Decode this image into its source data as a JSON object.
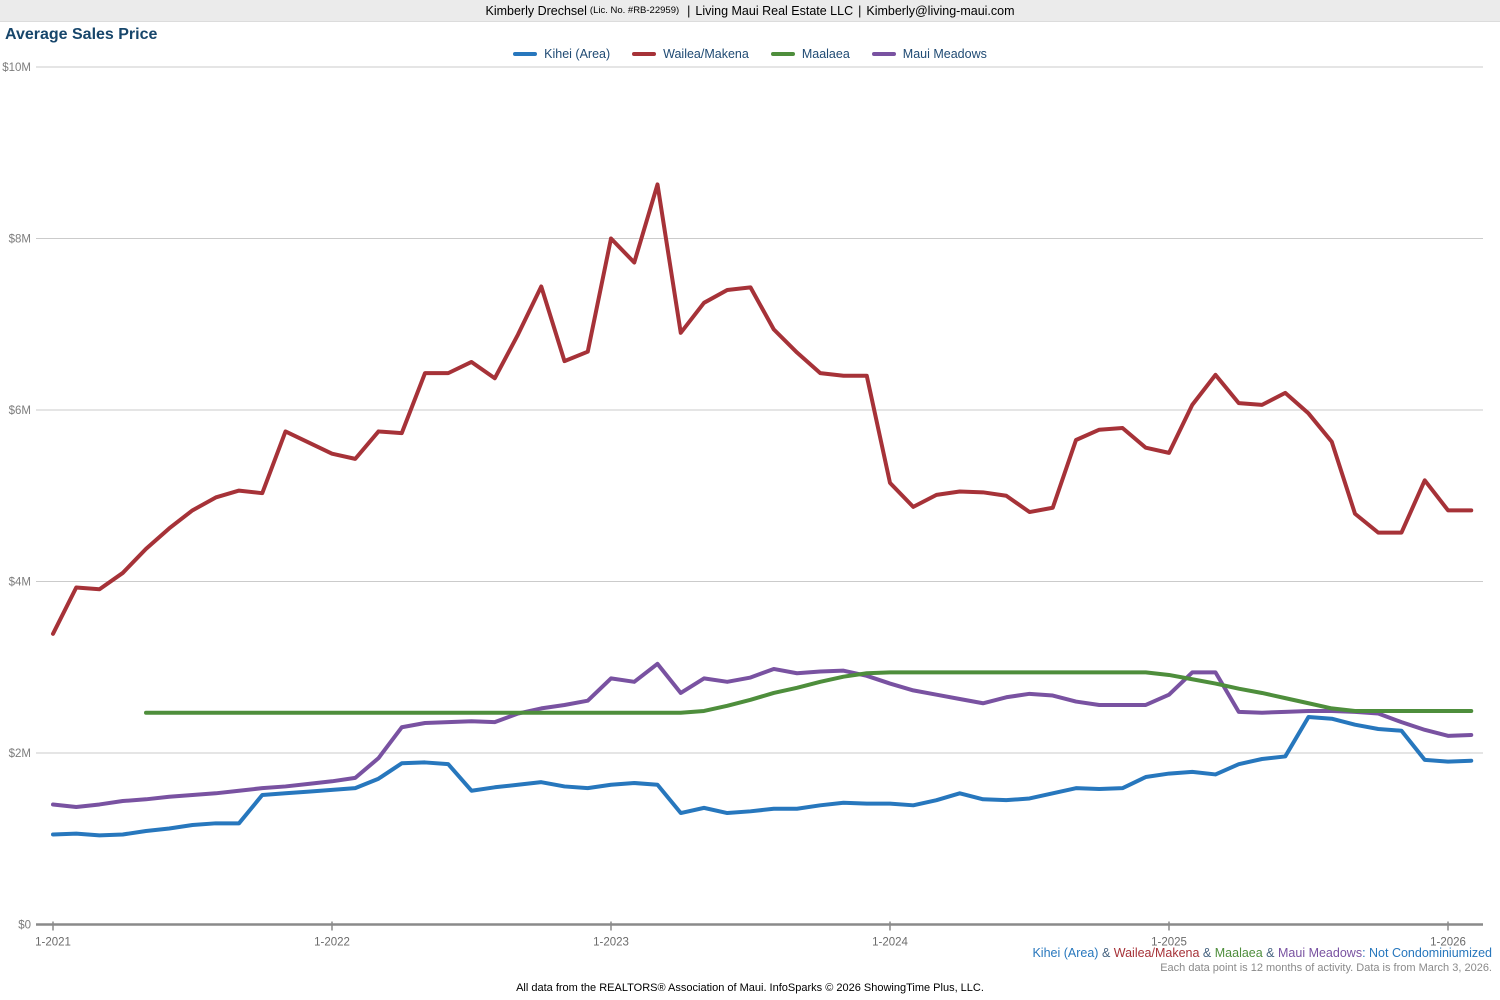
{
  "header": {
    "agent": "Kimberly Drechsel",
    "license": "(Lic. No. #RB-22959)",
    "separator": "|",
    "company": "Living Maui Real Estate LLC",
    "email": "Kimberly@living-maui.com"
  },
  "title": "Average Sales Price",
  "chart_data": {
    "type": "line",
    "title": "Average Sales Price",
    "x_unit": "month",
    "x_start": "2021-01",
    "x_end": "2026-02",
    "y_unit": "USD millions",
    "ylim": [
      0,
      10
    ],
    "grid": "horizontal",
    "legend_position": "top-center",
    "y_ticks": [
      {
        "value": 0,
        "label": "$0"
      },
      {
        "value": 2,
        "label": "$2M"
      },
      {
        "value": 4,
        "label": "$4M"
      },
      {
        "value": 6,
        "label": "$6M"
      },
      {
        "value": 8,
        "label": "$8M"
      },
      {
        "value": 10,
        "label": "$10M"
      }
    ],
    "x_ticks": [
      {
        "month_index": 0,
        "label": "1-2021"
      },
      {
        "month_index": 12,
        "label": "1-2022"
      },
      {
        "month_index": 24,
        "label": "1-2023"
      },
      {
        "month_index": 36,
        "label": "1-2024"
      },
      {
        "month_index": 48,
        "label": "1-2025"
      },
      {
        "month_index": 60,
        "label": "1-2026"
      }
    ],
    "series": [
      {
        "name": "Kihei (Area)",
        "color": "#2777BD",
        "start_month_index": 0,
        "values": [
          1.05,
          1.06,
          1.04,
          1.05,
          1.09,
          1.12,
          1.16,
          1.18,
          1.18,
          1.51,
          1.53,
          1.55,
          1.57,
          1.59,
          1.7,
          1.88,
          1.89,
          1.87,
          1.56,
          1.6,
          1.63,
          1.66,
          1.61,
          1.59,
          1.63,
          1.65,
          1.63,
          1.3,
          1.36,
          1.3,
          1.32,
          1.35,
          1.35,
          1.39,
          1.42,
          1.41,
          1.41,
          1.39,
          1.45,
          1.53,
          1.46,
          1.45,
          1.47,
          1.53,
          1.59,
          1.58,
          1.59,
          1.72,
          1.76,
          1.78,
          1.75,
          1.87,
          1.93,
          1.96,
          2.42,
          2.4,
          2.33,
          2.28,
          2.26,
          1.92,
          1.9,
          1.91
        ]
      },
      {
        "name": "Wailea/Makena",
        "color": "#A63238",
        "start_month_index": 0,
        "values": [
          3.39,
          3.93,
          3.91,
          4.1,
          4.38,
          4.62,
          4.83,
          4.98,
          5.06,
          5.03,
          5.75,
          5.62,
          5.49,
          5.43,
          5.75,
          5.73,
          6.43,
          6.43,
          6.56,
          6.37,
          6.88,
          7.44,
          6.57,
          6.68,
          8.0,
          7.72,
          8.63,
          6.9,
          7.25,
          7.4,
          7.43,
          6.94,
          6.67,
          6.43,
          6.4,
          6.4,
          5.15,
          4.87,
          5.01,
          5.05,
          5.04,
          5.0,
          4.81,
          4.86,
          5.65,
          5.77,
          5.79,
          5.56,
          5.5,
          6.06,
          6.41,
          6.08,
          6.06,
          6.2,
          5.96,
          5.63,
          4.79,
          4.57,
          4.57,
          5.18,
          4.83,
          4.83
        ]
      },
      {
        "name": "Maalaea",
        "color": "#4E8E3C",
        "start_month_index": 4,
        "values": [
          2.47,
          2.47,
          2.47,
          2.47,
          2.47,
          2.47,
          2.47,
          2.47,
          2.47,
          2.47,
          2.47,
          2.47,
          2.47,
          2.47,
          2.47,
          2.47,
          2.47,
          2.47,
          2.47,
          2.47,
          2.47,
          2.47,
          2.47,
          2.47,
          2.49,
          2.55,
          2.62,
          2.7,
          2.76,
          2.83,
          2.89,
          2.93,
          2.94,
          2.94,
          2.94,
          2.94,
          2.94,
          2.94,
          2.94,
          2.94,
          2.94,
          2.94,
          2.94,
          2.94,
          2.91,
          2.86,
          2.81,
          2.75,
          2.7,
          2.64,
          2.58,
          2.52,
          2.49,
          2.49,
          2.49,
          2.49,
          2.49,
          2.49
        ]
      },
      {
        "name": "Maui Meadows",
        "color": "#7952A1",
        "start_month_index": 0,
        "values": [
          1.4,
          1.37,
          1.4,
          1.44,
          1.46,
          1.49,
          1.51,
          1.53,
          1.56,
          1.59,
          1.61,
          1.64,
          1.67,
          1.71,
          1.94,
          2.3,
          2.35,
          2.36,
          2.37,
          2.36,
          2.46,
          2.52,
          2.56,
          2.61,
          2.87,
          2.83,
          3.04,
          2.7,
          2.87,
          2.83,
          2.88,
          2.98,
          2.93,
          2.95,
          2.96,
          2.9,
          2.81,
          2.73,
          2.68,
          2.63,
          2.58,
          2.65,
          2.69,
          2.67,
          2.6,
          2.56,
          2.56,
          2.56,
          2.68,
          2.94,
          2.94,
          2.48,
          2.47,
          2.48,
          2.49,
          2.49,
          2.48,
          2.46,
          2.36,
          2.27,
          2.2,
          2.21
        ]
      }
    ]
  },
  "footnote": {
    "ampersand": "&",
    "suffix": ": Not Condominiumized",
    "note": "Each data point is 12 months of activity. Data is from March 3, 2026."
  },
  "attribution": "All data from the REALTORS® Association of Maui. InfoSparks © 2026 ShowingTime Plus, LLC.",
  "colors": {
    "title_text": "#17466B",
    "legend_text": "#1F4A73",
    "gridline": "#cbcbcb",
    "axis": "#8a8a8a",
    "y_tick_text": "#7d7d7d",
    "x_tick_text": "#6b6b6b",
    "ampersand_text": "#466380",
    "suffix_text": "#2777BD",
    "topbar_bg": "#ebebeb"
  }
}
